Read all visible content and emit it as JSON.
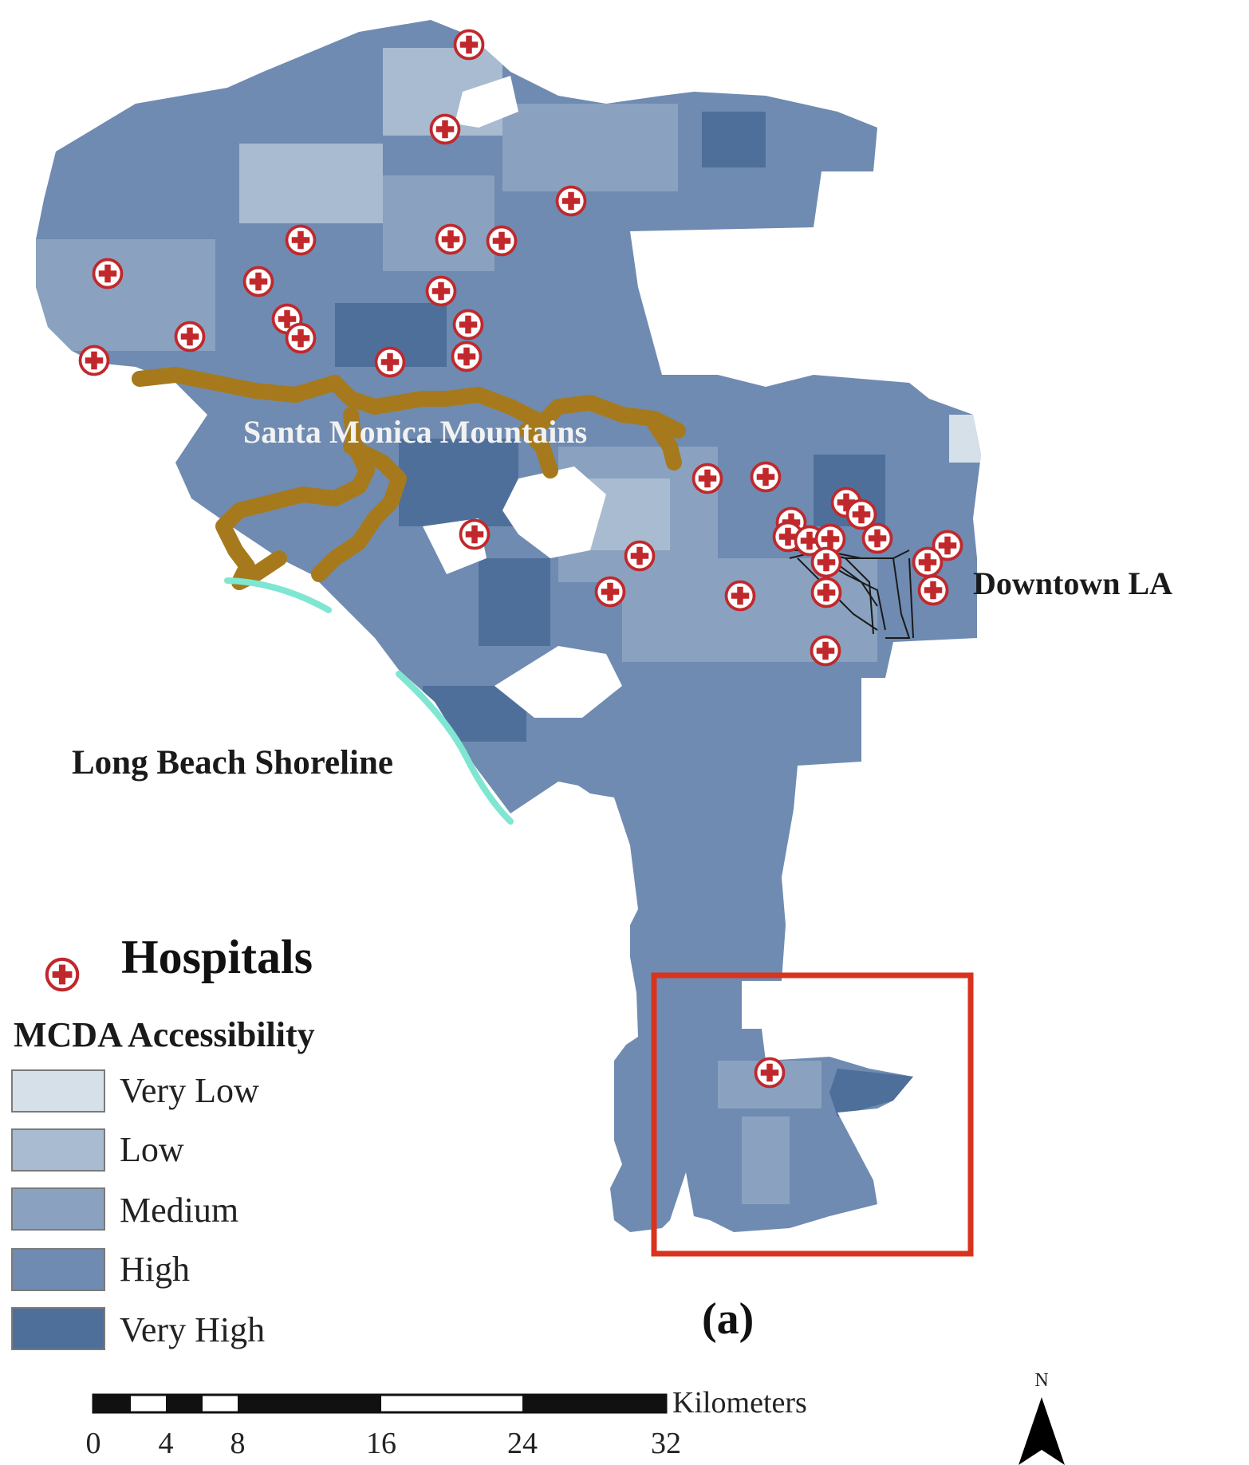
{
  "labels": {
    "santa_monica": "Santa Monica Mountains",
    "downtown": "Downtown LA",
    "long_beach": "Long Beach Shoreline",
    "panel": "(a)"
  },
  "legend": {
    "hospitals_label": "Hospitals",
    "title": "MCDA Accessibility",
    "classes": [
      {
        "label": "Very Low",
        "color": "#d5e0e9"
      },
      {
        "label": "Low",
        "color": "#a8bbd0"
      },
      {
        "label": "Medium",
        "color": "#8aa2c0"
      },
      {
        "label": "High",
        "color": "#6f8bb1"
      },
      {
        "label": "Very High",
        "color": "#4f6f9b"
      }
    ]
  },
  "scale_bar": {
    "unit": "Kilometers",
    "ticks": [
      "0",
      "4",
      "8",
      "16",
      "24",
      "32"
    ]
  },
  "north_arrow": {
    "label": "N"
  },
  "colors": {
    "mountains": "#a67a1c",
    "shoreline": "#7fe6d2",
    "hospital_red": "#c0282c",
    "highlight_box": "#d9331e",
    "downtown_lines": "#1a1a1a"
  }
}
